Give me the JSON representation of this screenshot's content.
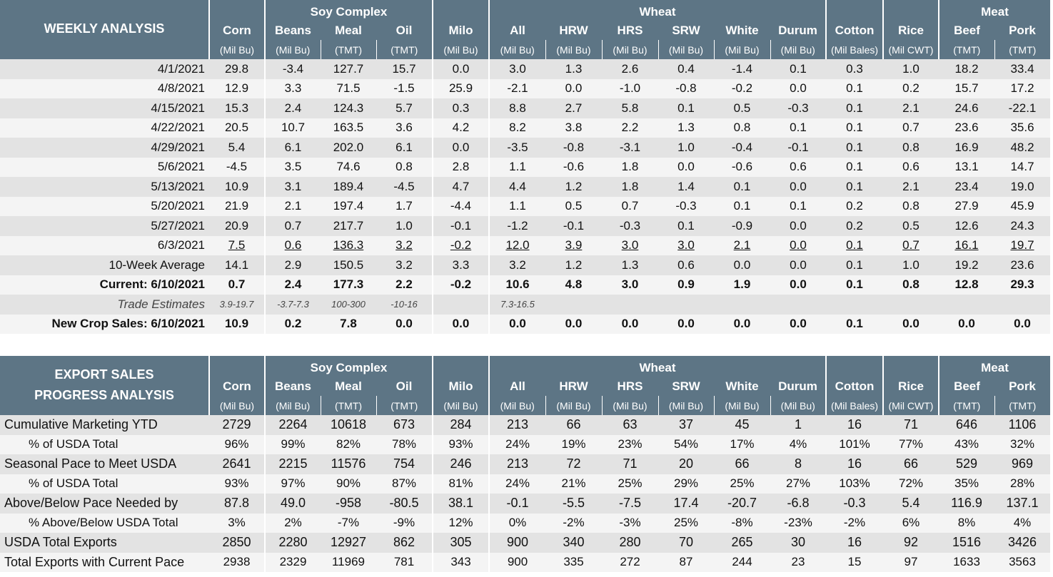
{
  "colors": {
    "header_bg": "#5d7585",
    "row_grey": "#e3e3e3",
    "row_light": "#f4f4f4",
    "positive": "#5b8f36",
    "negative": "#a31d1d"
  },
  "groups": {
    "soy": "Soy Complex",
    "wheat": "Wheat",
    "meat": "Meat"
  },
  "columns": [
    {
      "name": "Corn",
      "unit": "(Mil Bu)"
    },
    {
      "name": "Beans",
      "unit": "(Mil Bu)"
    },
    {
      "name": "Meal",
      "unit": "(TMT)"
    },
    {
      "name": "Oil",
      "unit": "(TMT)"
    },
    {
      "name": "Milo",
      "unit": "(Mil Bu)"
    },
    {
      "name": "All",
      "unit": "(Mil Bu)"
    },
    {
      "name": "HRW",
      "unit": "(Mil Bu)"
    },
    {
      "name": "HRS",
      "unit": "(Mil Bu)"
    },
    {
      "name": "SRW",
      "unit": "(Mil Bu)"
    },
    {
      "name": "White",
      "unit": "(Mil Bu)"
    },
    {
      "name": "Durum",
      "unit": "(Mil Bu)"
    },
    {
      "name": "Cotton",
      "unit": "(Mil Bales)"
    },
    {
      "name": "Rice",
      "unit": "(Mil CWT)"
    },
    {
      "name": "Beef",
      "unit": "(TMT)"
    },
    {
      "name": "Pork",
      "unit": "(TMT)"
    }
  ],
  "weekly": {
    "title": "WEEKLY ANALYSIS",
    "rows": [
      {
        "label": "4/1/2021",
        "values": [
          "29.8",
          "-3.4",
          "127.7",
          "15.7",
          "0.0",
          "3.0",
          "1.3",
          "2.6",
          "0.4",
          "-1.4",
          "0.1",
          "0.3",
          "1.0",
          "18.2",
          "33.4"
        ]
      },
      {
        "label": "4/8/2021",
        "values": [
          "12.9",
          "3.3",
          "71.5",
          "-1.5",
          "25.9",
          "-2.1",
          "0.0",
          "-1.0",
          "-0.8",
          "-0.2",
          "0.0",
          "0.1",
          "0.2",
          "15.7",
          "17.2"
        ]
      },
      {
        "label": "4/15/2021",
        "values": [
          "15.3",
          "2.4",
          "124.3",
          "5.7",
          "0.3",
          "8.8",
          "2.7",
          "5.8",
          "0.1",
          "0.5",
          "-0.3",
          "0.1",
          "2.1",
          "24.6",
          "-22.1"
        ]
      },
      {
        "label": "4/22/2021",
        "values": [
          "20.5",
          "10.7",
          "163.5",
          "3.6",
          "4.2",
          "8.2",
          "3.8",
          "2.2",
          "1.3",
          "0.8",
          "0.1",
          "0.1",
          "0.7",
          "23.6",
          "35.6"
        ]
      },
      {
        "label": "4/29/2021",
        "values": [
          "5.4",
          "6.1",
          "202.0",
          "6.1",
          "0.0",
          "-3.5",
          "-0.8",
          "-3.1",
          "1.0",
          "-0.4",
          "-0.1",
          "0.1",
          "0.8",
          "16.9",
          "48.2"
        ]
      },
      {
        "label": "5/6/2021",
        "values": [
          "-4.5",
          "3.5",
          "74.6",
          "0.8",
          "2.8",
          "1.1",
          "-0.6",
          "1.8",
          "0.0",
          "-0.6",
          "0.6",
          "0.1",
          "0.6",
          "13.1",
          "14.7"
        ]
      },
      {
        "label": "5/13/2021",
        "values": [
          "10.9",
          "3.1",
          "189.4",
          "-4.5",
          "4.7",
          "4.4",
          "1.2",
          "1.8",
          "1.4",
          "0.1",
          "0.0",
          "0.1",
          "2.1",
          "23.4",
          "19.0"
        ]
      },
      {
        "label": "5/20/2021",
        "values": [
          "21.9",
          "2.1",
          "197.4",
          "1.7",
          "-4.4",
          "1.1",
          "0.5",
          "0.7",
          "-0.3",
          "0.1",
          "0.1",
          "0.2",
          "0.8",
          "27.9",
          "45.9"
        ]
      },
      {
        "label": "5/27/2021",
        "values": [
          "20.9",
          "0.7",
          "217.7",
          "1.0",
          "-0.1",
          "-1.2",
          "-0.1",
          "-0.3",
          "0.1",
          "-0.9",
          "0.0",
          "0.2",
          "0.5",
          "12.6",
          "24.3"
        ]
      },
      {
        "label": "6/3/2021",
        "values": [
          "7.5",
          "0.6",
          "136.3",
          "3.2",
          "-0.2",
          "12.0",
          "3.9",
          "3.0",
          "3.0",
          "2.1",
          "0.0",
          "0.1",
          "0.7",
          "16.1",
          "19.7"
        ]
      },
      {
        "label": "10-Week Average",
        "values": [
          "14.1",
          "2.9",
          "150.5",
          "3.2",
          "3.3",
          "3.2",
          "1.2",
          "1.3",
          "0.6",
          "0.0",
          "0.0",
          "0.1",
          "1.0",
          "19.2",
          "23.6"
        ]
      },
      {
        "label": "Current: 6/10/2021",
        "values": [
          "0.7",
          "2.4",
          "177.3",
          "2.2",
          "-0.2",
          "10.6",
          "4.8",
          "3.0",
          "0.9",
          "1.9",
          "0.0",
          "0.1",
          "0.8",
          "12.8",
          "29.3"
        ]
      },
      {
        "label": "Trade Estimates",
        "values": [
          "3.9-19.7",
          "-3.7-7.3",
          "100-300",
          "-10-16",
          "",
          "7.3-16.5",
          "",
          "",
          "",
          "",
          "",
          "",
          "",
          "",
          ""
        ]
      },
      {
        "label": "New Crop Sales: 6/10/2021",
        "values": [
          "10.9",
          "0.2",
          "7.8",
          "0.0",
          "0.0",
          "0.0",
          "0.0",
          "0.0",
          "0.0",
          "0.0",
          "0.0",
          "0.1",
          "0.0",
          "0.0",
          "0.0"
        ]
      }
    ]
  },
  "export": {
    "title_line1": "EXPORT SALES",
    "title_line2": "PROGRESS ANALYSIS",
    "rows": [
      {
        "label": "Cumulative Marketing YTD",
        "values": [
          "2729",
          "2264",
          "10618",
          "673",
          "284",
          "213",
          "66",
          "63",
          "37",
          "45",
          "1",
          "16",
          "71",
          "646",
          "1106"
        ]
      },
      {
        "label": "% of USDA Total",
        "values": [
          "96%",
          "99%",
          "82%",
          "78%",
          "93%",
          "24%",
          "19%",
          "23%",
          "54%",
          "17%",
          "4%",
          "101%",
          "77%",
          "43%",
          "32%"
        ]
      },
      {
        "label": "Seasonal Pace to Meet USDA",
        "values": [
          "2641",
          "2215",
          "11576",
          "754",
          "246",
          "213",
          "72",
          "71",
          "20",
          "66",
          "8",
          "16",
          "66",
          "529",
          "969"
        ]
      },
      {
        "label": "% of USDA Total",
        "values": [
          "93%",
          "97%",
          "90%",
          "87%",
          "81%",
          "24%",
          "21%",
          "25%",
          "29%",
          "25%",
          "27%",
          "103%",
          "72%",
          "35%",
          "28%"
        ]
      },
      {
        "label": "Above/Below Pace Needed by",
        "values": [
          "87.8",
          "49.0",
          "-958",
          "-80.5",
          "38.1",
          "-0.1",
          "-5.5",
          "-7.5",
          "17.4",
          "-20.7",
          "-6.8",
          "-0.3",
          "5.4",
          "116.9",
          "137.1"
        ]
      },
      {
        "label": "% Above/Below USDA Total",
        "values": [
          "3%",
          "2%",
          "-7%",
          "-9%",
          "12%",
          "0%",
          "-2%",
          "-3%",
          "25%",
          "-8%",
          "-23%",
          "-2%",
          "6%",
          "8%",
          "4%"
        ]
      },
      {
        "label": "USDA Total Exports",
        "values": [
          "2850",
          "2280",
          "12927",
          "862",
          "305",
          "900",
          "340",
          "280",
          "70",
          "265",
          "30",
          "16",
          "92",
          "1516",
          "3426"
        ]
      },
      {
        "label": "Total Exports with Current Pace",
        "values": [
          "2938",
          "2329",
          "11969",
          "781",
          "343",
          "900",
          "335",
          "272",
          "87",
          "244",
          "23",
          "15",
          "97",
          "1633",
          "3563"
        ]
      }
    ]
  }
}
